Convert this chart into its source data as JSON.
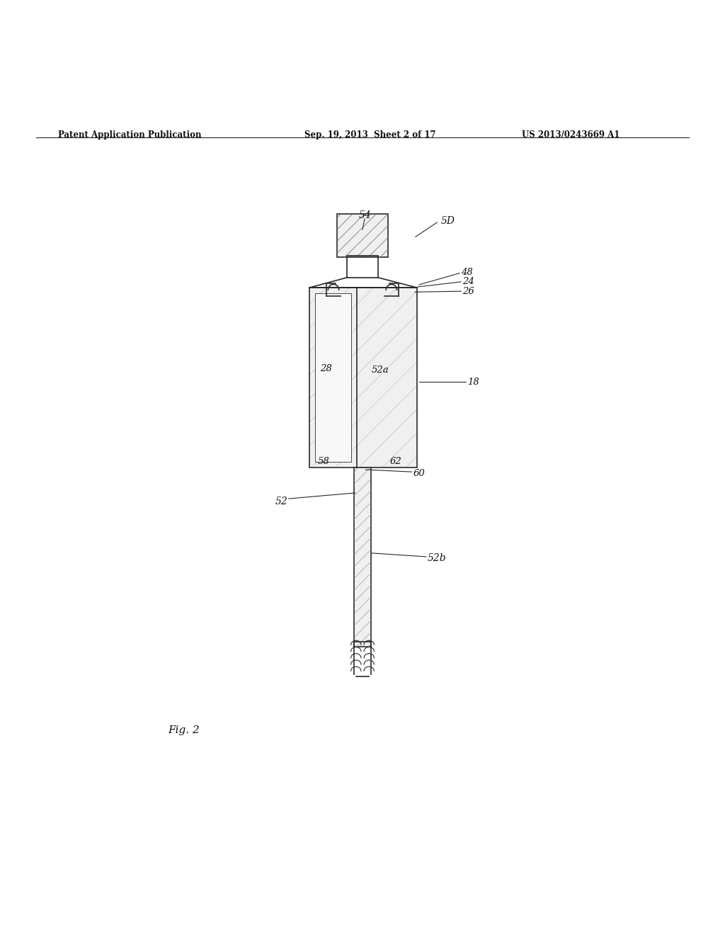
{
  "bg_color": "#ffffff",
  "line_color": "#2a2a2a",
  "header_text": "Patent Application Publication",
  "header_date": "Sep. 19, 2013  Sheet 2 of 17",
  "header_patent": "US 2013/0243669 A1",
  "fig_label": "Fig. 2"
}
